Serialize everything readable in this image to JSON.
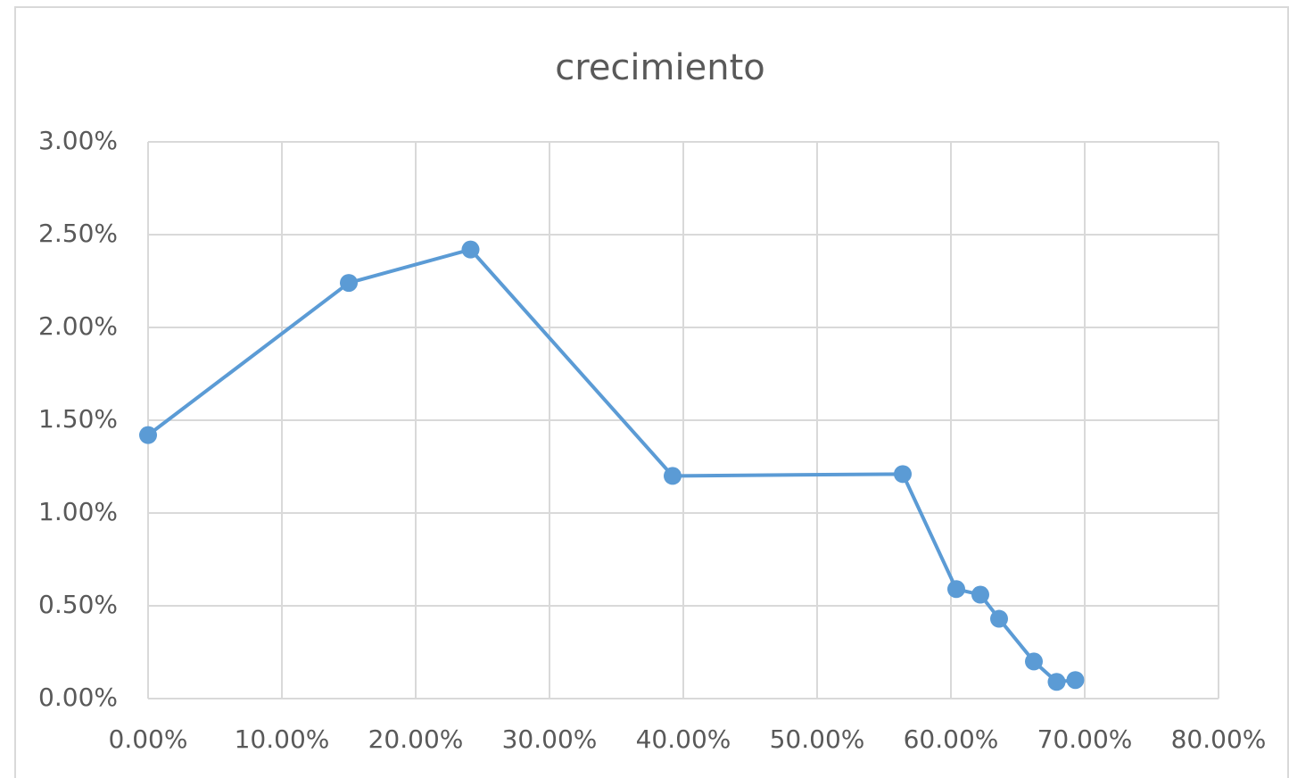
{
  "chart_data": {
    "type": "scatter",
    "title": "crecimiento",
    "series": [
      {
        "name": "crecimiento",
        "color": "#5b9bd5",
        "x": [
          0,
          15.0,
          24.1,
          39.2,
          56.4,
          60.4,
          62.2,
          63.6,
          66.2,
          67.9,
          69.3
        ],
        "values": [
          1.42,
          2.24,
          2.42,
          1.2,
          1.21,
          0.59,
          0.56,
          0.43,
          0.2,
          0.09,
          0.1
        ]
      }
    ],
    "xlim": [
      0,
      80
    ],
    "xticks": [
      {
        "value": 0,
        "label": "0.00%"
      },
      {
        "value": 10,
        "label": "10.00%"
      },
      {
        "value": 20,
        "label": "20.00%"
      },
      {
        "value": 30,
        "label": "30.00%"
      },
      {
        "value": 40,
        "label": "40.00%"
      },
      {
        "value": 50,
        "label": "50.00%"
      },
      {
        "value": 60,
        "label": "60.00%"
      },
      {
        "value": 70,
        "label": "70.00%"
      },
      {
        "value": 80,
        "label": "80.00%"
      }
    ],
    "ylim": [
      0,
      3
    ],
    "yticks": [
      {
        "value": 0,
        "label": "0.00%"
      },
      {
        "value": 0.5,
        "label": "0.50%"
      },
      {
        "value": 1,
        "label": "1.00%"
      },
      {
        "value": 1.5,
        "label": "1.50%"
      },
      {
        "value": 2,
        "label": "2.00%"
      },
      {
        "value": 2.5,
        "label": "2.50%"
      },
      {
        "value": 3,
        "label": "3.00%"
      }
    ],
    "grid": true
  }
}
